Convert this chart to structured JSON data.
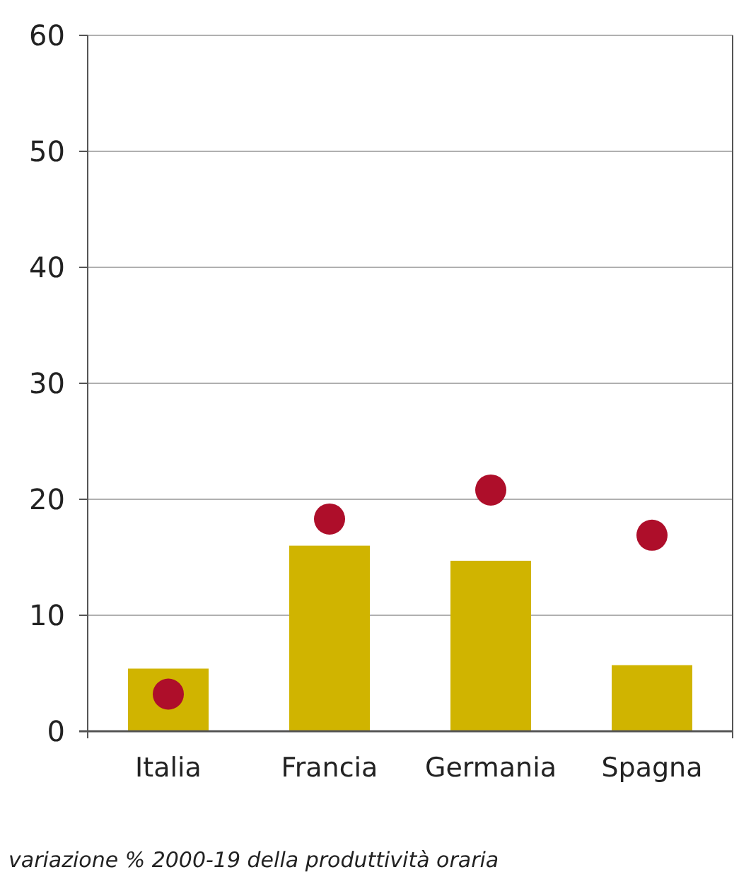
{
  "chart_data": {
    "type": "bar",
    "categories": [
      "Italia",
      "Francia",
      "Germania",
      "Spagna"
    ],
    "series": [
      {
        "color": "#d0b400",
        "values": [
          5.4,
          16.0,
          14.7,
          5.7
        ]
      },
      {
        "type": "scatter",
        "color": "#ae0e2a",
        "values": [
          3.2,
          18.3,
          20.8,
          16.9
        ]
      }
    ],
    "ylim": [
      0,
      60
    ],
    "yticks": [
      0,
      10,
      20,
      30,
      40,
      50,
      60
    ],
    "grid": "y",
    "marker": "circle",
    "annotations": [
      "variazione % 2000-19 della produttività oraria"
    ]
  }
}
